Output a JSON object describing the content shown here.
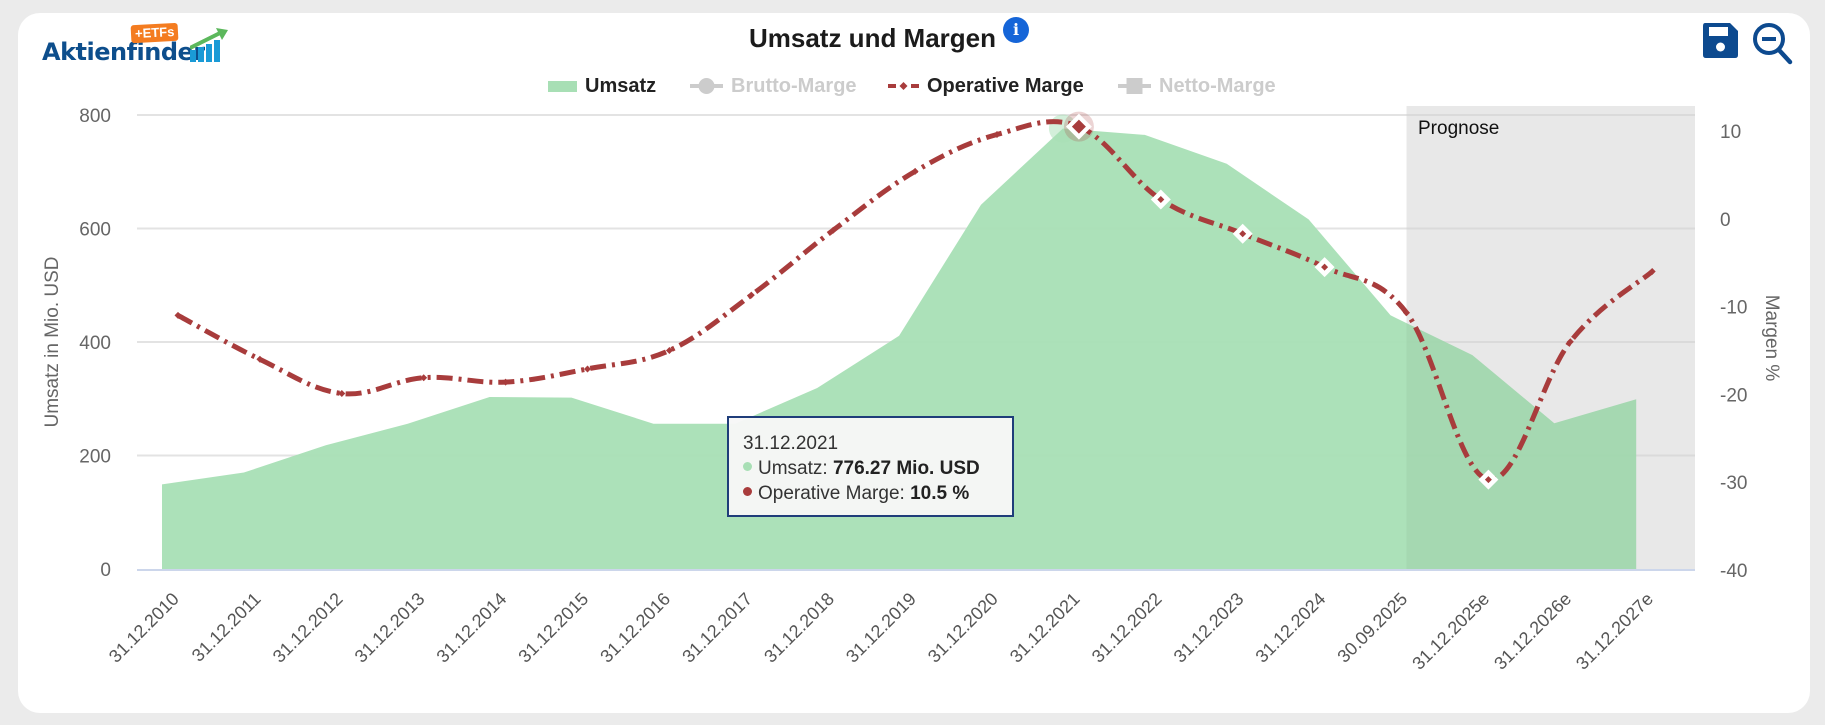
{
  "logo": {
    "brand": "Aktienfinder",
    "badge": "+ETFs"
  },
  "header": {
    "title": "Umsatz und Margen",
    "info_icon": "info-icon",
    "save_icon": "save-icon",
    "zoom_out_icon": "zoom-out-icon"
  },
  "colors": {
    "umsatz": "#a8dfb5",
    "operative_marge": "#a83c3c",
    "hidden_legend": "#cccccc",
    "forecast_band": "#f2f2f2",
    "brand_blue": "#0d4e8c",
    "info_blue": "#1565d8"
  },
  "tooltip": {
    "date": "31.12.2021",
    "rows": [
      {
        "label": "Umsatz: ",
        "value": "776.27 Mio. USD"
      },
      {
        "label": "Operative Marge: ",
        "value": "10.5 %"
      }
    ]
  },
  "chart_data": {
    "type": "area+line",
    "title": "Umsatz und Margen",
    "categories": [
      "31.12.2010",
      "31.12.2011",
      "31.12.2012",
      "31.12.2013",
      "31.12.2014",
      "31.12.2015",
      "31.12.2016",
      "31.12.2017",
      "31.12.2018",
      "31.12.2019",
      "31.12.2020",
      "31.12.2021",
      "31.12.2022",
      "31.12.2023",
      "31.12.2024",
      "30.09.2025",
      "31.12.2025e",
      "31.12.2026e",
      "31.12.2027e"
    ],
    "legend": [
      {
        "name": "Umsatz",
        "visible": true
      },
      {
        "name": "Brutto-Marge",
        "visible": false
      },
      {
        "name": "Operative Marge",
        "visible": true
      },
      {
        "name": "Netto-Marge",
        "visible": false
      }
    ],
    "legend_position": "top-center",
    "series": [
      {
        "name": "Umsatz",
        "type": "area",
        "axis": "left",
        "values": [
          149,
          170,
          218,
          256,
          303,
          302,
          256,
          256,
          319,
          411,
          642,
          776.27,
          765,
          714,
          616,
          447,
          377,
          257,
          299
        ]
      },
      {
        "name": "Operative Marge",
        "type": "line",
        "axis": "right",
        "values": [
          -11.0,
          -16.0,
          -19.9,
          -18.1,
          -18.6,
          -17.1,
          -15.0,
          -8.7,
          -1.3,
          5.4,
          9.6,
          10.5,
          2.2,
          -1.7,
          -5.5,
          -10.7,
          -29.7,
          -14.0,
          -6.0
        ]
      }
    ],
    "y_left": {
      "label": "Umsatz in Mio. USD",
      "range": [
        0,
        800
      ],
      "ticks": [
        "0",
        "200",
        "400",
        "600",
        "800"
      ]
    },
    "y_right": {
      "label": "Margen %",
      "range": [
        -40,
        10
      ],
      "ticks": [
        "-40",
        "-30",
        "-20",
        "-10",
        "0",
        "10"
      ]
    },
    "forecast_band": {
      "label": "Prognose",
      "from_category": "30.09.2025",
      "to_category": "31.12.2027e"
    },
    "highlighted_category": "31.12.2021",
    "grid": true
  }
}
